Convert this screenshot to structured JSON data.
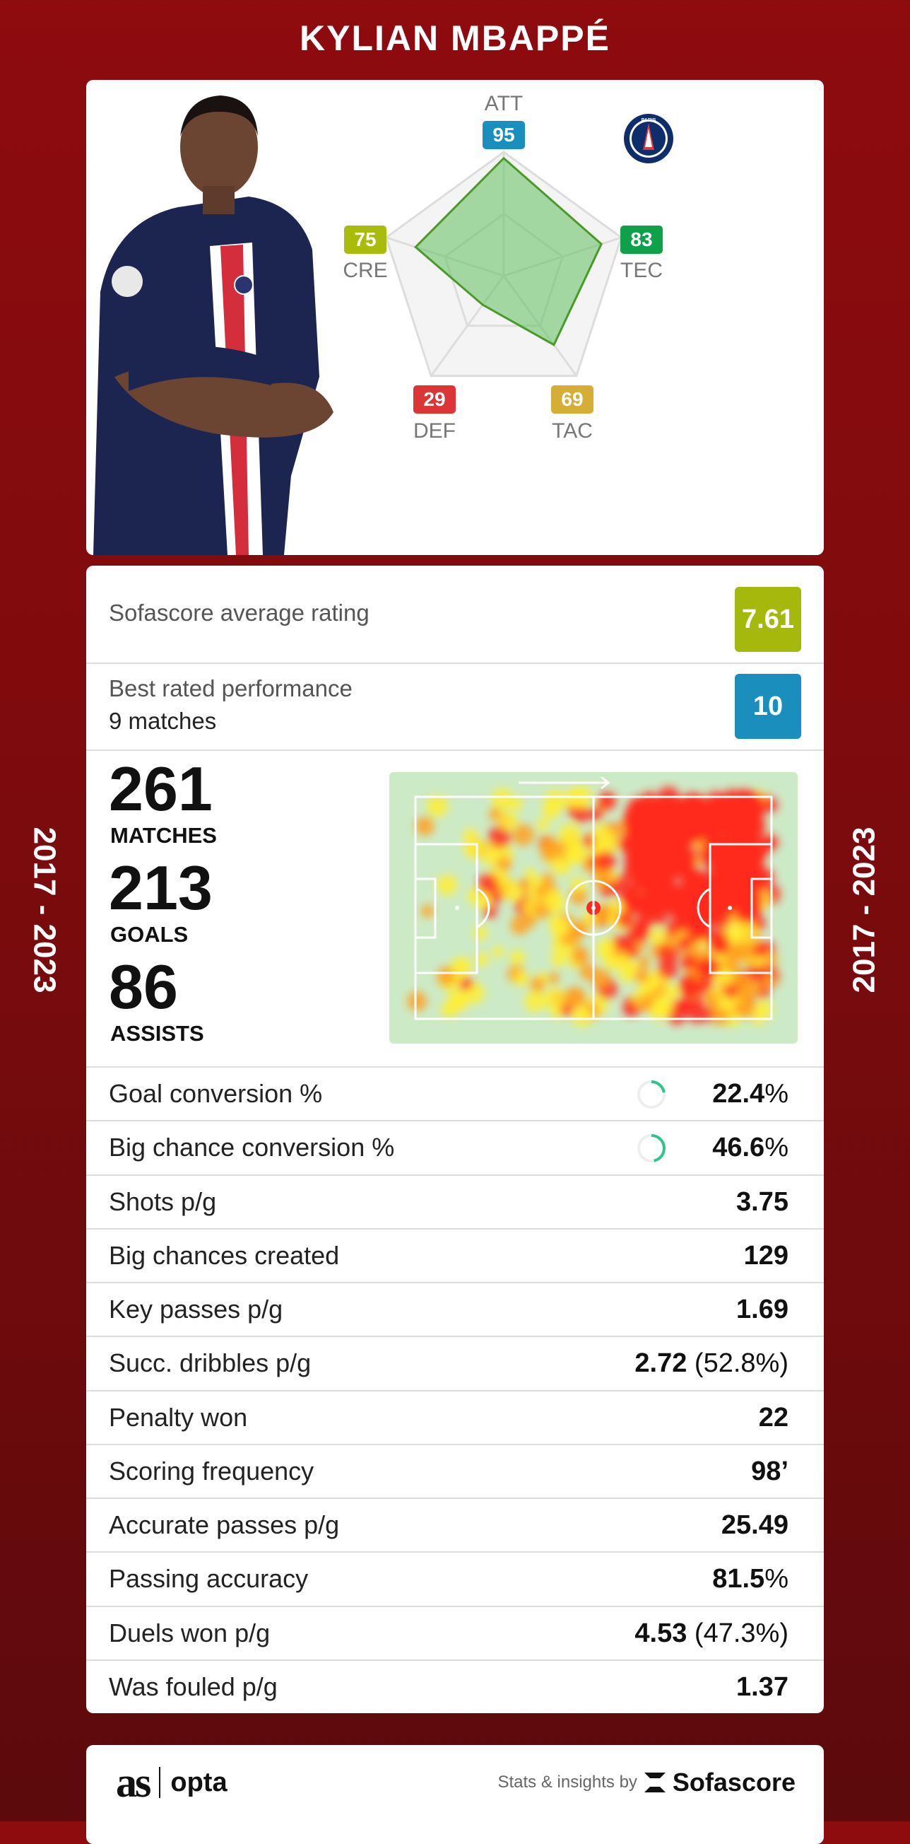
{
  "title": "KYLIAN MBAPPÉ",
  "period": "2017 - 2023",
  "club": {
    "logo_text": "PARIS"
  },
  "attributes": [
    {
      "key": "ATT",
      "value": 95,
      "color": "#1a8fbd"
    },
    {
      "key": "TEC",
      "value": 83,
      "color": "#0fa14a"
    },
    {
      "key": "TAC",
      "value": 69,
      "color": "#d4ae35"
    },
    {
      "key": "DEF",
      "value": 29,
      "color": "#dc3535"
    },
    {
      "key": "CRE",
      "value": 75,
      "color": "#a9bb0b"
    }
  ],
  "radar_colors": {
    "fill": "#6cc36a",
    "stroke": "#4a9a2a",
    "grid": "#dddddd"
  },
  "rating": {
    "label": "Sofascore average rating",
    "value": "7.61",
    "color": "#a5b80c"
  },
  "best": {
    "label": "Best rated performance",
    "sub": "9 matches",
    "value": "10",
    "color": "#1a8fbd"
  },
  "totals": [
    {
      "value": "261",
      "label": "MATCHES"
    },
    {
      "value": "213",
      "label": "GOALS"
    },
    {
      "value": "86",
      "label": "ASSISTS"
    }
  ],
  "stats": [
    {
      "label": "Goal conversion %",
      "value": "22.4",
      "suffix": "%",
      "ring": 0.224
    },
    {
      "label": "Big chance conversion %",
      "value": "46.6",
      "suffix": "%",
      "ring": 0.466
    },
    {
      "label": "Shots p/g",
      "value": "3.75",
      "suffix": ""
    },
    {
      "label": "Big chances created",
      "value": "129",
      "suffix": ""
    },
    {
      "label": "Key passes p/g",
      "value": "1.69",
      "suffix": ""
    },
    {
      "label": "Succ. dribbles p/g",
      "value": "2.72",
      "suffix": " (52.8%)"
    },
    {
      "label": "Penalty won",
      "value": "22",
      "suffix": ""
    },
    {
      "label": "Scoring frequency",
      "value": "98’",
      "suffix": ""
    },
    {
      "label": "Accurate passes p/g",
      "value": "25.49",
      "suffix": ""
    },
    {
      "label": "Passing accuracy",
      "value": "81.5",
      "suffix": "%"
    },
    {
      "label": "Duels won p/g",
      "value": "4.53",
      "suffix": " (47.3%)"
    },
    {
      "label": "Was fouled p/g",
      "value": "1.37",
      "suffix": ""
    }
  ],
  "footer": {
    "as_logo": "as",
    "opta_logo": "opta",
    "credit": "Stats & insights by",
    "sofascore": "Sofascore"
  }
}
